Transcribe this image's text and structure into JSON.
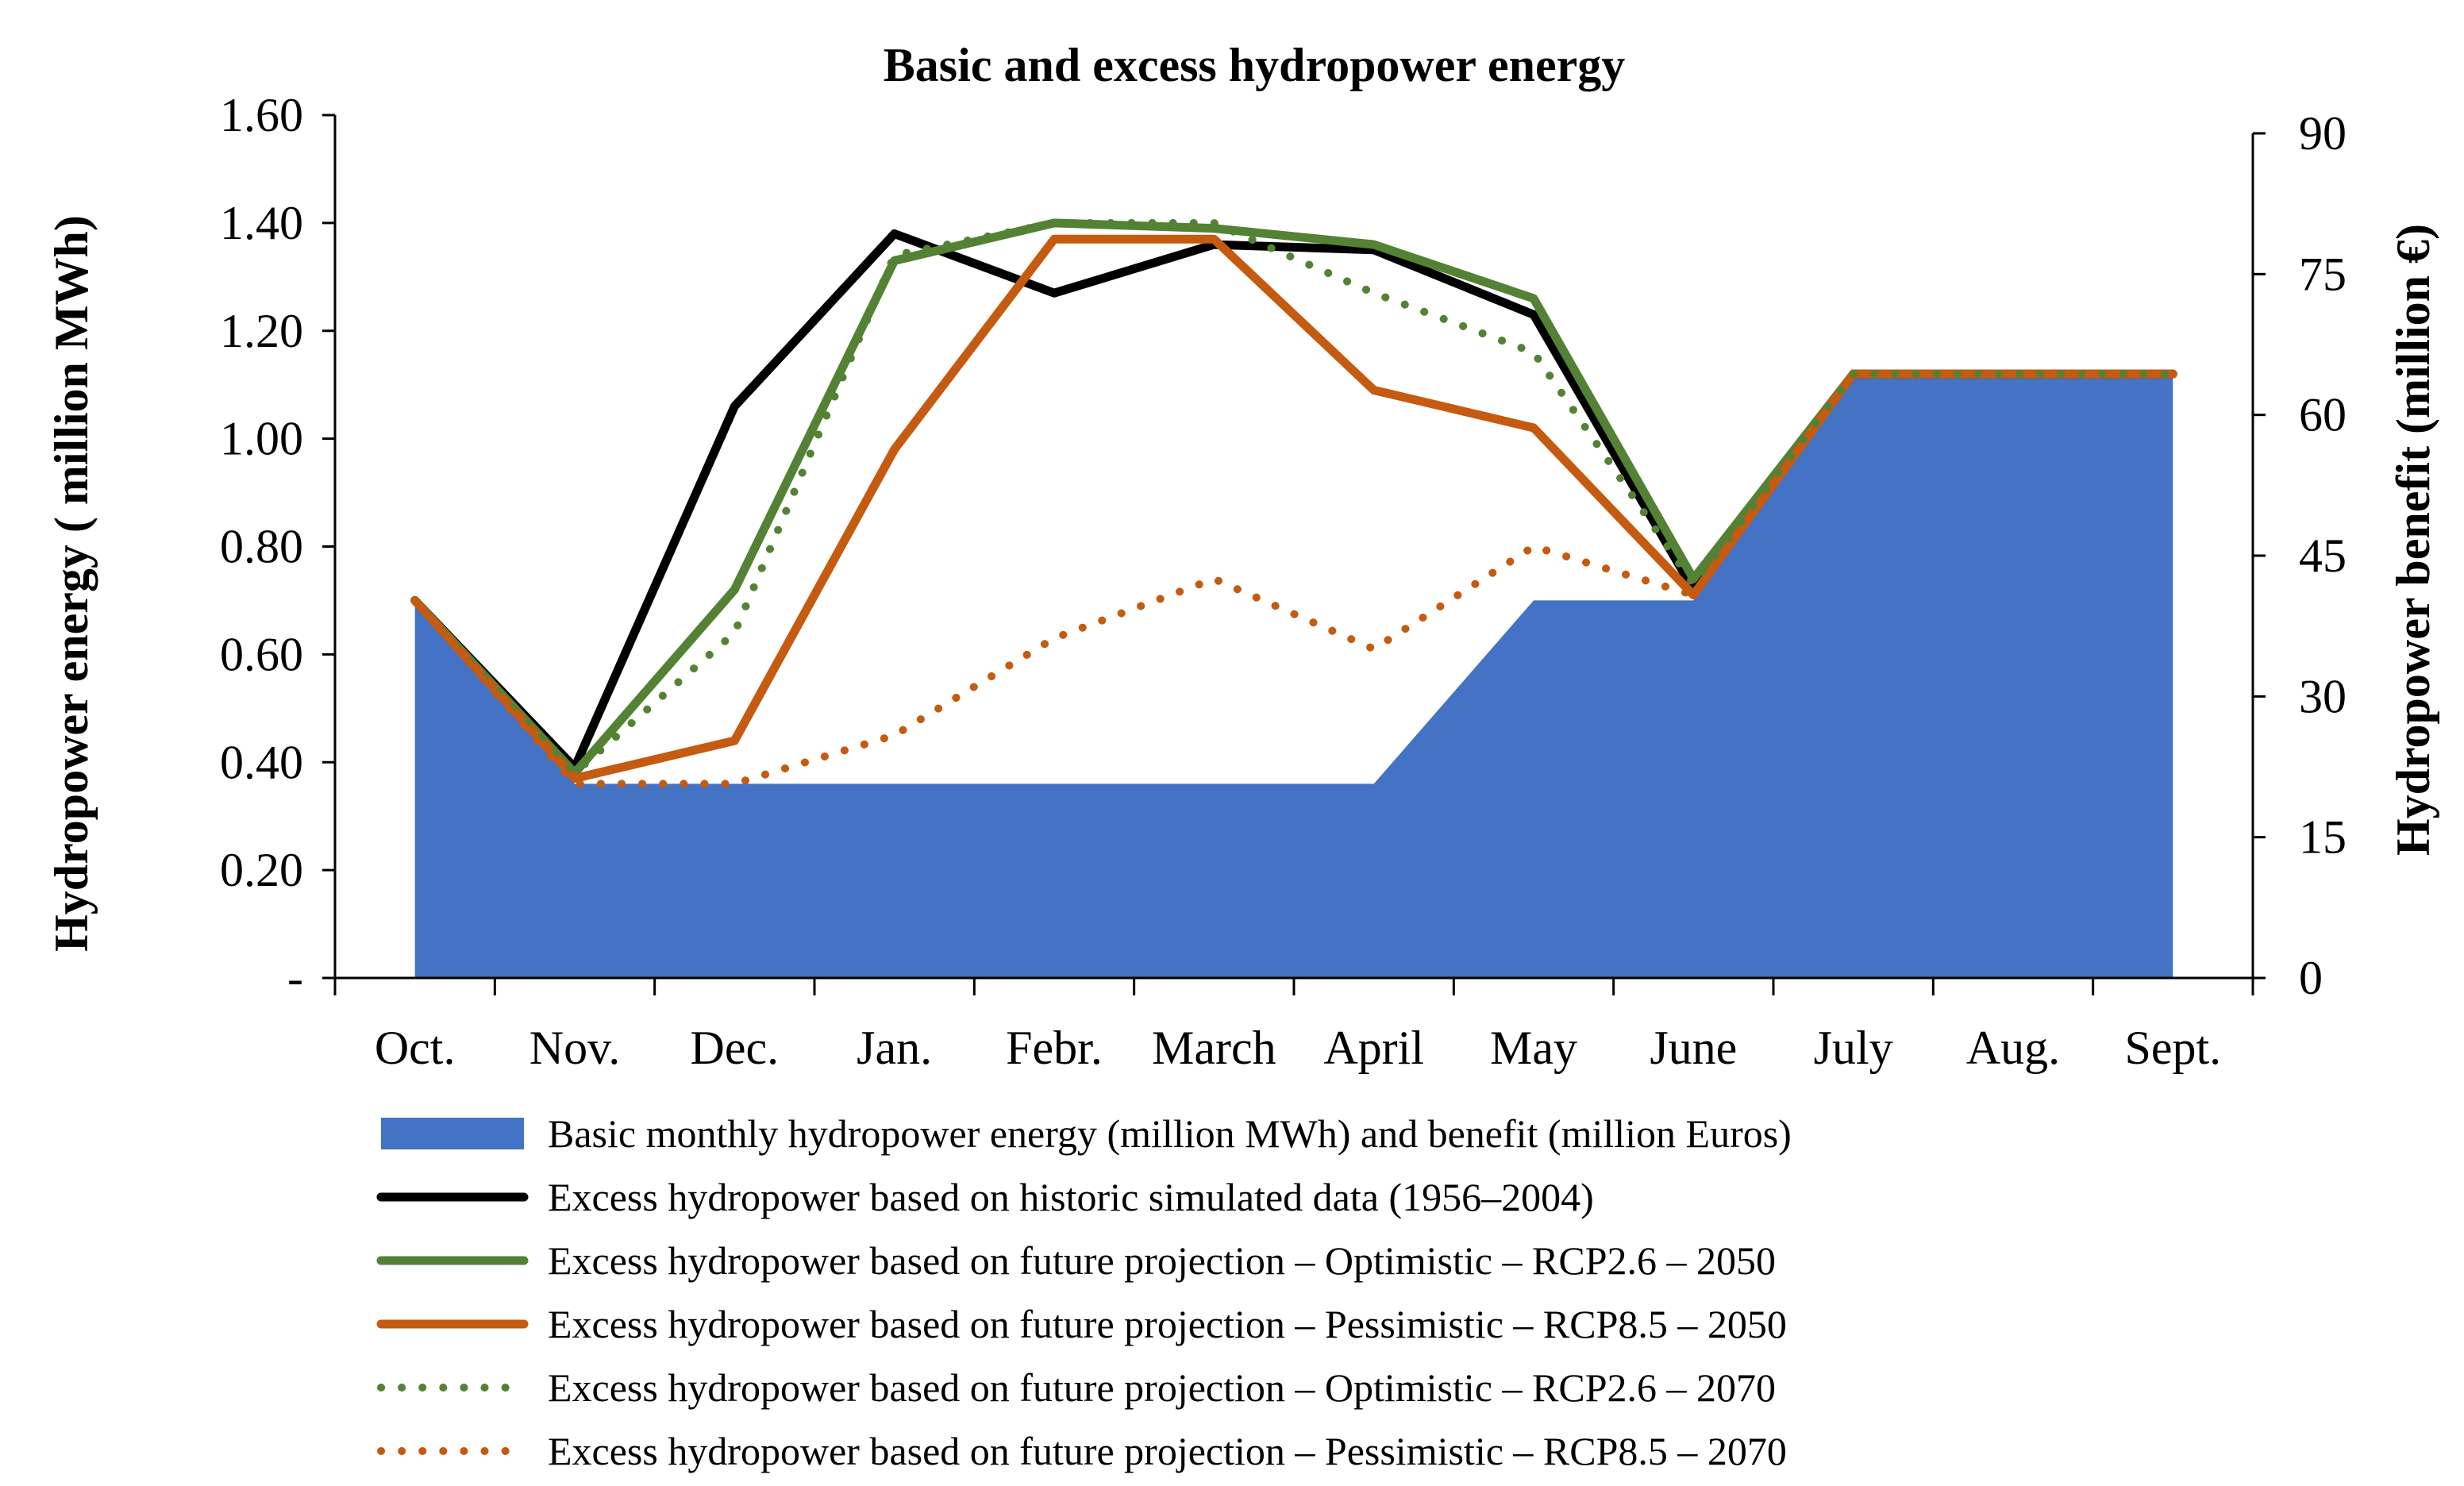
{
  "chart_data": {
    "type": "area",
    "title": "Basic and excess hydropower energy",
    "ylabel": "Hydropower energy ( million MWh)",
    "y2label": "Hydropower benefit (million €)",
    "xlabel": "",
    "categories": [
      "Oct.",
      "Nov.",
      "Dec.",
      "Jan.",
      "Febr.",
      "March",
      "April",
      "May",
      "June",
      "July",
      "Aug.",
      "Sept."
    ],
    "ylim": [
      0,
      1.6
    ],
    "y2lim": [
      0,
      90
    ],
    "y_ticks": [
      0,
      0.2,
      0.4,
      0.6,
      0.8,
      1.0,
      1.2,
      1.4,
      1.6
    ],
    "y_tick_labels": [
      "-",
      "0.20",
      "0.40",
      "0.60",
      "0.80",
      "1.00",
      "1.20",
      "1.40",
      "1.60"
    ],
    "y2_ticks": [
      0,
      15,
      30,
      45,
      60,
      75,
      90
    ],
    "y2_tick_labels": [
      "0",
      "15",
      "30",
      "45",
      "60",
      "75",
      "90"
    ],
    "grid": false,
    "legend_position": "bottom",
    "series": [
      {
        "name": "Basic monthly hydropower energy (million MWh) and benefit (million Euros)",
        "kind": "area",
        "color": "#4472C4",
        "values": [
          0.7,
          0.36,
          0.36,
          0.36,
          0.36,
          0.36,
          0.36,
          0.7,
          0.7,
          1.12,
          1.12,
          1.12
        ]
      },
      {
        "name": "Excess hydropower based on historic simulated data (1956–2004)",
        "kind": "line",
        "style": "solid",
        "color": "#000000",
        "values": [
          0.7,
          0.39,
          1.06,
          1.38,
          1.27,
          1.36,
          1.35,
          1.23,
          0.72,
          1.12,
          1.12,
          1.12
        ]
      },
      {
        "name": "Excess hydropower based on future projection – Optimistic – RCP2.6 – 2050",
        "kind": "line",
        "style": "solid",
        "color": "#548235",
        "values": [
          0.7,
          0.38,
          0.72,
          1.33,
          1.4,
          1.39,
          1.36,
          1.26,
          0.74,
          1.12,
          1.12,
          1.12
        ]
      },
      {
        "name": "Excess hydropower based on future projection – Pessimistic – RCP8.5 – 2050",
        "kind": "line",
        "style": "solid",
        "color": "#C55A11",
        "values": [
          0.7,
          0.37,
          0.44,
          0.98,
          1.37,
          1.37,
          1.09,
          1.02,
          0.71,
          1.12,
          1.12,
          1.12
        ]
      },
      {
        "name": "Excess hydropower based on future projection – Optimistic – RCP2.6 – 2070",
        "kind": "line",
        "style": "dotted",
        "color": "#548235",
        "values": [
          0.7,
          0.38,
          0.64,
          1.34,
          1.4,
          1.4,
          1.27,
          1.16,
          0.73,
          1.12,
          1.12,
          1.12
        ]
      },
      {
        "name": "Excess hydropower based on future projection – Pessimistic – RCP8.5 – 2070",
        "kind": "line",
        "style": "dotted",
        "color": "#C55A11",
        "values": [
          0.7,
          0.36,
          0.36,
          0.45,
          0.63,
          0.74,
          0.61,
          0.8,
          0.71,
          1.12,
          1.12,
          1.12
        ]
      }
    ]
  }
}
